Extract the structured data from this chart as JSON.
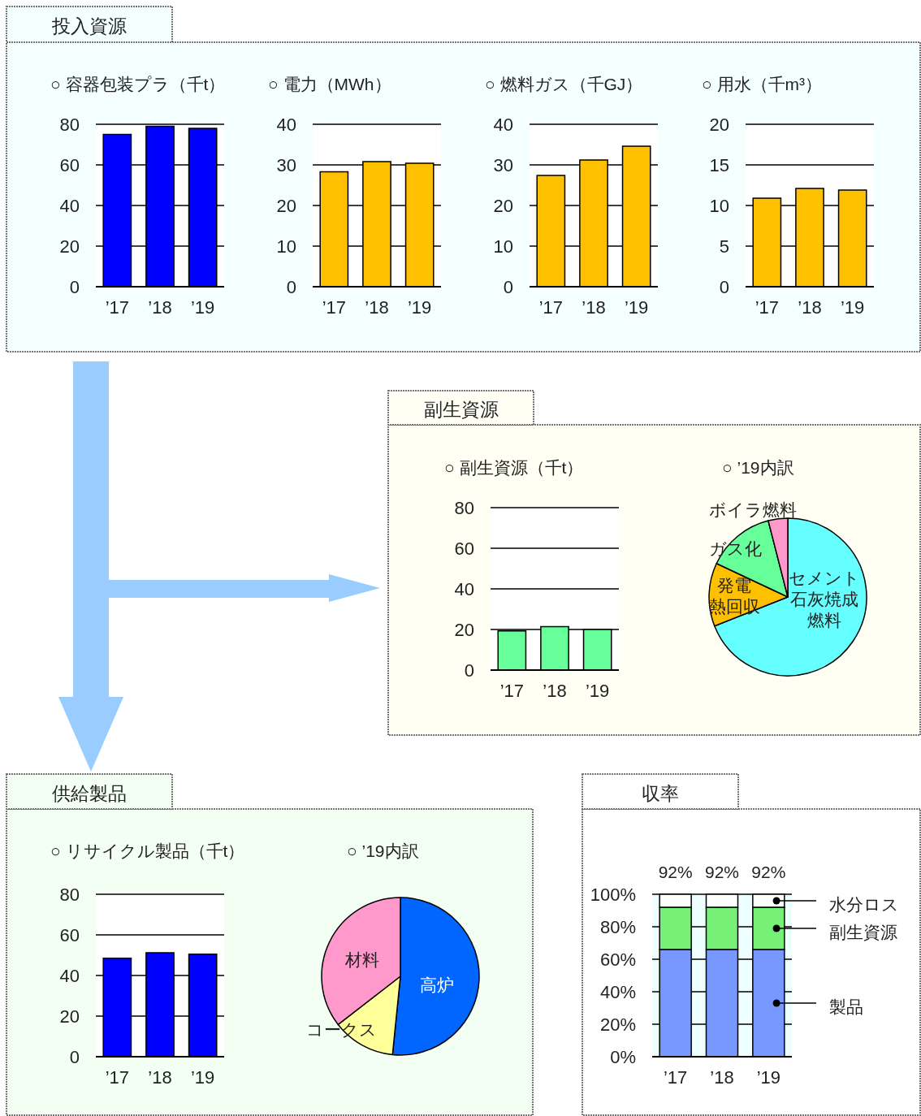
{
  "chart_data": [
    {
      "type": "other",
      "title": "投入資源"
    },
    {
      "type": "bar",
      "title": "○ 容器包装プラ（千t）",
      "categories": [
        "’17",
        "’18",
        "’19"
      ],
      "values": [
        75,
        79,
        78
      ],
      "color": "#0000ff",
      "ylim": [
        0,
        80
      ],
      "yticks": [
        0,
        20,
        40,
        60,
        80
      ],
      "grid": "y"
    },
    {
      "type": "bar",
      "title": "○ 電力（MWh）",
      "categories": [
        "’17",
        "’18",
        "’19"
      ],
      "values": [
        28.3,
        30.8,
        30.4
      ],
      "color": "#ffc000",
      "ylim": [
        0,
        40
      ],
      "yticks": [
        0,
        10,
        20,
        30,
        40
      ],
      "grid": "y"
    },
    {
      "type": "bar",
      "title": "○ 燃料ガス（千GJ）",
      "categories": [
        "’17",
        "’18",
        "’19"
      ],
      "values": [
        27.4,
        31.2,
        34.6
      ],
      "color": "#ffc000",
      "ylim": [
        0,
        40
      ],
      "yticks": [
        0,
        10,
        20,
        30,
        40
      ],
      "grid": "y"
    },
    {
      "type": "bar",
      "title": "○ 用水（千m³）",
      "categories": [
        "’17",
        "’18",
        "’19"
      ],
      "values": [
        10.9,
        12.1,
        11.9
      ],
      "color": "#ffc000",
      "ylim": [
        0,
        20
      ],
      "yticks": [
        0,
        5,
        10,
        15,
        20
      ],
      "grid": "y"
    },
    {
      "type": "other",
      "title": "副生資源"
    },
    {
      "type": "bar",
      "title": "○ 副生資源（千t）",
      "categories": [
        "’17",
        "’18",
        "’19"
      ],
      "values": [
        19.3,
        21.4,
        20.0
      ],
      "color": "#66ff99",
      "ylim": [
        0,
        80
      ],
      "yticks": [
        0,
        20,
        40,
        60,
        80
      ],
      "grid": "y"
    },
    {
      "type": "pie",
      "title": "○ ’19内訳",
      "categories": [
        "セメント石灰焼成燃料",
        "発電熱回収",
        "ガス化",
        "ボイラ燃料"
      ],
      "values": [
        69,
        13,
        14,
        4
      ],
      "colors": [
        "#66ffff",
        "#ffc000",
        "#66ff99",
        "#ff99cc"
      ]
    },
    {
      "type": "other",
      "title": "供給製品"
    },
    {
      "type": "bar",
      "title": "○ リサイクル製品（千t）",
      "categories": [
        "’17",
        "’18",
        "’19"
      ],
      "values": [
        48.5,
        51.2,
        50.5
      ],
      "color": "#0000ff",
      "ylim": [
        0,
        80
      ],
      "yticks": [
        0,
        20,
        40,
        60,
        80
      ],
      "grid": "y"
    },
    {
      "type": "pie",
      "title": "○ ’19内訳",
      "categories": [
        "高炉",
        "コークス",
        "材料"
      ],
      "values": [
        51.6,
        12.9,
        35.5
      ],
      "colors": [
        "#0066ff",
        "#ffff99",
        "#ff99cc"
      ]
    },
    {
      "type": "bar",
      "title": "収率",
      "stacked": true,
      "categories": [
        "’17",
        "’18",
        "’19"
      ],
      "series": [
        {
          "name": "製品",
          "color": "#7799ff",
          "values": [
            66,
            66,
            66
          ]
        },
        {
          "name": "副生資源",
          "color": "#77f077",
          "values": [
            26,
            26,
            26
          ]
        },
        {
          "name": "水分ロス",
          "color": "#ffffff",
          "values": [
            8,
            8,
            8
          ]
        }
      ],
      "ylim": [
        0,
        100
      ],
      "yticks": [
        {
          "value": 0,
          "label": "0%"
        },
        {
          "value": 20,
          "label": "20%"
        },
        {
          "value": 40,
          "label": "40%"
        },
        {
          "value": 60,
          "label": "60%"
        },
        {
          "value": 80,
          "label": "80%"
        },
        {
          "value": 100,
          "label": "100%"
        }
      ],
      "grid": "y",
      "annotations": [
        "92%",
        "92%",
        "92%"
      ],
      "legend": "right"
    }
  ]
}
